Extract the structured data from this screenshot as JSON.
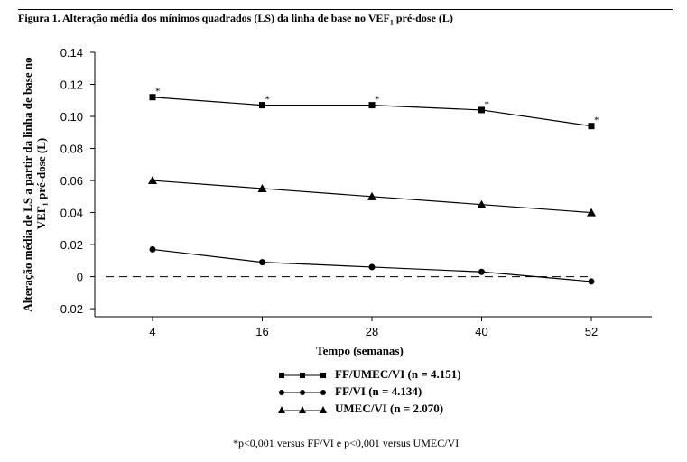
{
  "figure": {
    "title_prefix": "Figura 1. Alteração média dos mínimos quadrados (LS) da linha de base no VEF",
    "title_sub": "1",
    "title_suffix": " pré-dose (L)",
    "footnote": "*p<0,001 versus FF/VI e p<0,001 versus UMEC/VI"
  },
  "chart_data": {
    "type": "line",
    "title": "",
    "xlabel": "Tempo (semanas)",
    "ylabel_line1": "Alteração média de LS a partir da linha de base no",
    "ylabel_line2": "VEF₁ pré-dose (L)",
    "x": [
      4,
      16,
      28,
      40,
      52
    ],
    "x_tick_labels": [
      "4",
      "16",
      "28",
      "40",
      "52"
    ],
    "y_ticks": [
      -0.02,
      0,
      0.02,
      0.04,
      0.06,
      0.08,
      0.1,
      0.12,
      0.14
    ],
    "y_tick_labels": [
      "-0.02",
      "0",
      "0.02",
      "0.04",
      "0.06",
      "0.08",
      "0.10",
      "0.12",
      "0.14"
    ],
    "ylim": [
      -0.025,
      0.14
    ],
    "reference_line": 0,
    "grid": false,
    "legend_position": "bottom",
    "series": [
      {
        "name": "FF/UMEC/VI (n = 4.151)",
        "marker": "square",
        "values": [
          0.112,
          0.107,
          0.107,
          0.104,
          0.094
        ],
        "annotations": [
          "*",
          "*",
          "*",
          "*",
          "*"
        ]
      },
      {
        "name": "FF/VI (n = 4.134)",
        "marker": "circle",
        "values": [
          0.017,
          0.009,
          0.006,
          0.003,
          -0.003
        ],
        "annotations": [
          "",
          "",
          "",
          "",
          ""
        ]
      },
      {
        "name": "UMEC/VI (n = 2.070)",
        "marker": "triangle",
        "values": [
          0.06,
          0.055,
          0.05,
          0.045,
          0.04
        ],
        "annotations": [
          "",
          "",
          "",
          "",
          ""
        ]
      }
    ]
  }
}
